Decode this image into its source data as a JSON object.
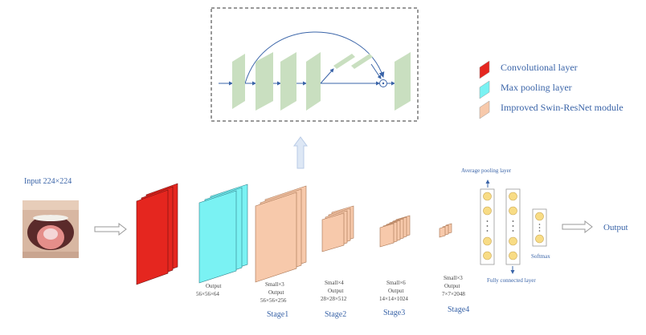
{
  "input": {
    "label": "Input  224×224",
    "image": "tongue-photo"
  },
  "output_label": "Output",
  "legend": [
    {
      "label": "Convolutional layer",
      "color": "#e5261f"
    },
    {
      "label": "Max pooling layer",
      "color": "#7af2f3"
    },
    {
      "label": "Improved Swin-ResNet module",
      "color": "#f7c9ab"
    }
  ],
  "maxpool": {
    "output_title": "Output",
    "output_dims": "56×56×64"
  },
  "stages": [
    {
      "name": "Stage1",
      "block": "Small×3",
      "output_title": "Output",
      "output_dims": "56×56×256"
    },
    {
      "name": "Stage2",
      "block": "Small×4",
      "output_title": "Output",
      "output_dims": "28×28×512"
    },
    {
      "name": "Stage3",
      "block": "Small×6",
      "output_title": "Output",
      "output_dims": "14×14×1024"
    },
    {
      "name": "Stage4",
      "block": "Small×3",
      "output_title": "Output",
      "output_dims": "7×7×2048"
    }
  ],
  "head": {
    "avg_pool": "Average pooling layer",
    "fc": "Fully connected layer",
    "softmax": "Softmax"
  },
  "colors": {
    "conv": "#e5261f",
    "maxpool": "#7af2f3",
    "swin": "#f7c9ab",
    "module_layer": "#c9dfc0",
    "arrow_blue": "#3a64a8",
    "node": "#f8dc85"
  }
}
